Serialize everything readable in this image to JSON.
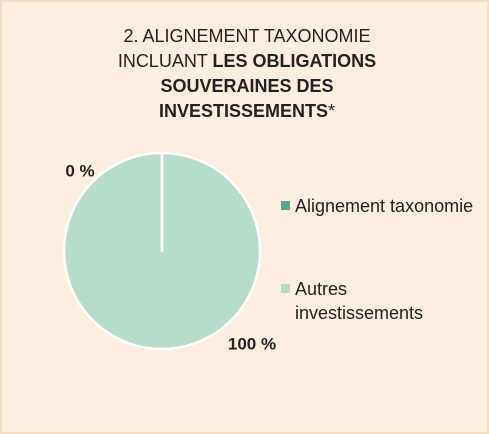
{
  "chart_data": {
    "type": "pie",
    "title_parts": [
      "2. ALIGNEMENT TAXONOMIE INCLUANT",
      "LES OBLIGATIONS SOUVERAINES DES INVESTISSEMENTS",
      "*"
    ],
    "categories": [
      "Alignement taxonomie",
      "Autres investissements"
    ],
    "values": [
      0,
      100
    ],
    "value_labels": [
      "0 %",
      "100 %"
    ],
    "colors": [
      "#5aa88a",
      "#b8dccb"
    ],
    "legend": "right"
  }
}
